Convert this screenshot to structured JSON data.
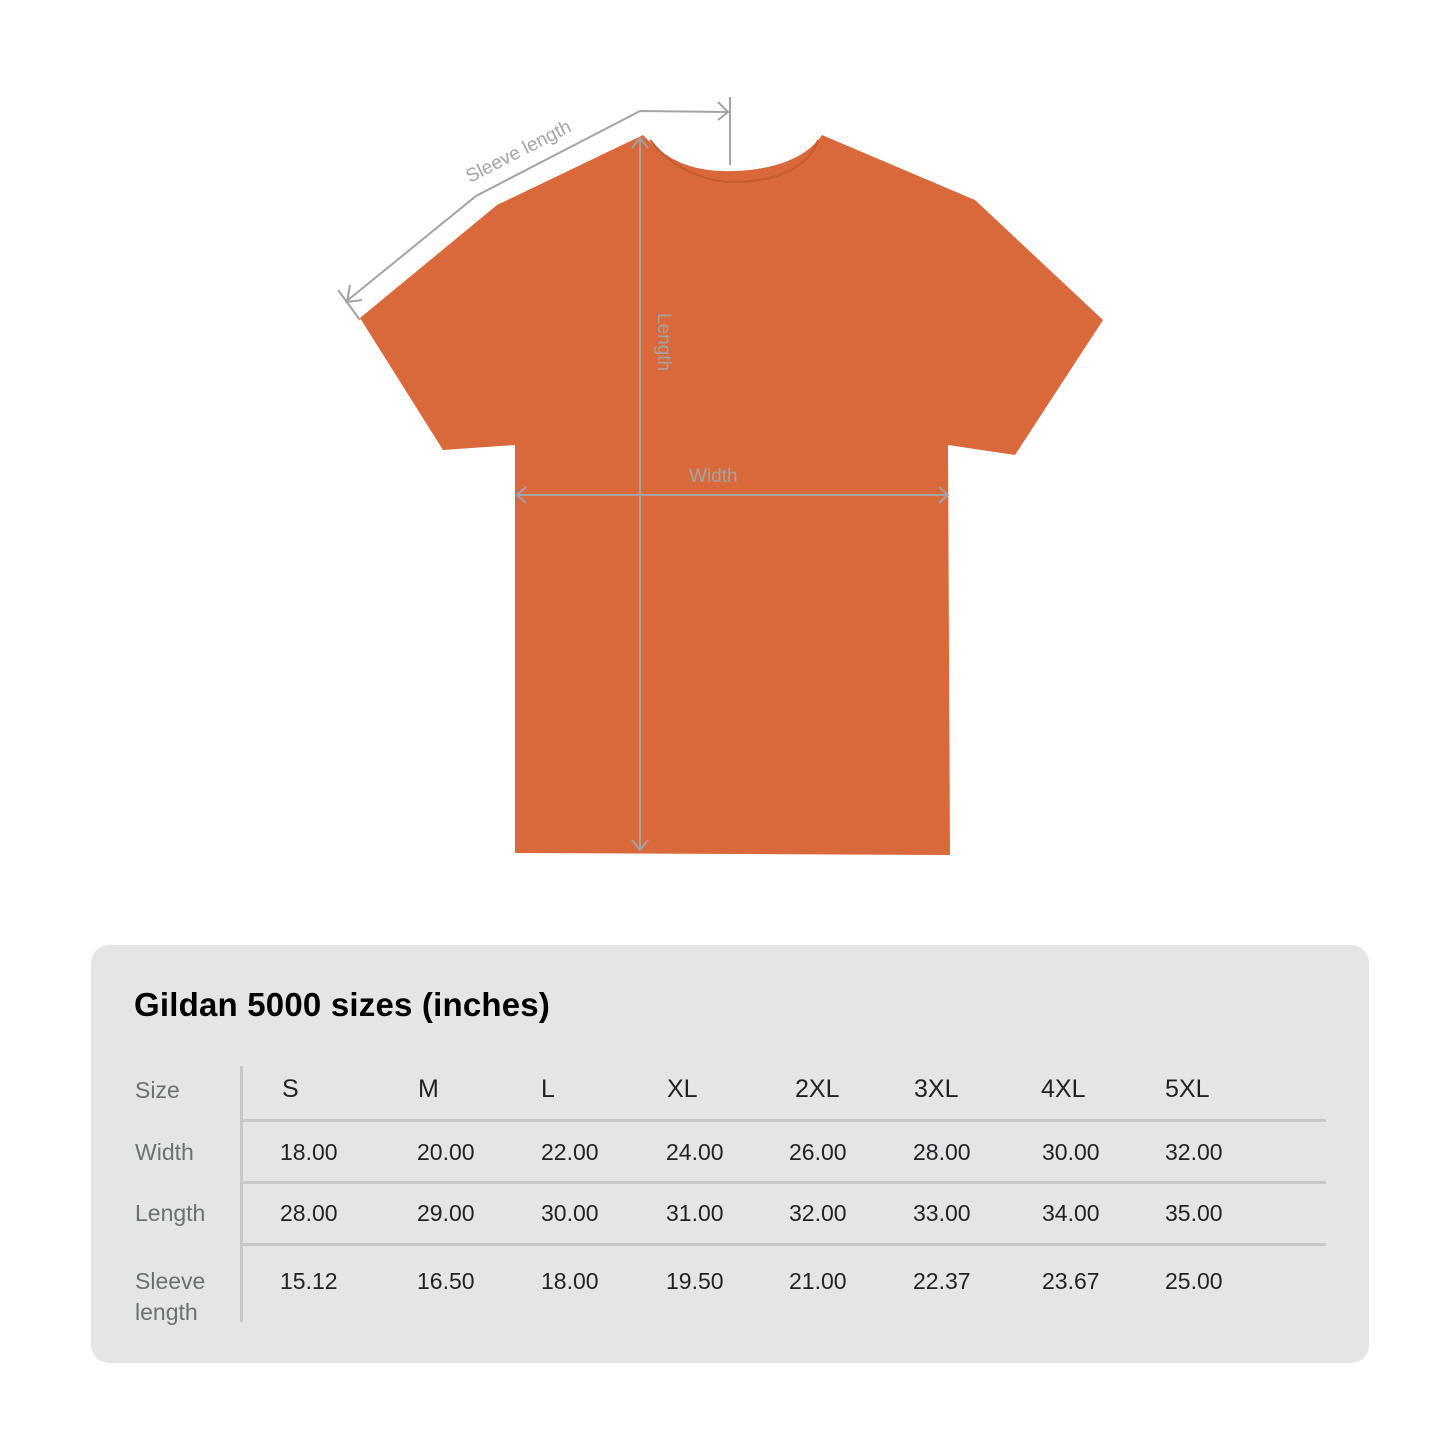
{
  "diagram": {
    "shirt_color": "#d9683a",
    "measure_line_color": "#a3a3a3",
    "labels": {
      "sleeve": "Sleeve length",
      "length": "Length",
      "width": "Width"
    }
  },
  "table": {
    "title": "Gildan 5000 sizes (inches)",
    "background": "#e3e5e7",
    "row_labels": [
      "Size",
      "Width",
      "Length",
      "Sleeve length"
    ],
    "sizes": [
      "S",
      "M",
      "L",
      "XL",
      "2XL",
      "3XL",
      "4XL",
      "5XL"
    ],
    "rows": [
      {
        "label": "Width",
        "values": [
          "18.00",
          "20.00",
          "22.00",
          "24.00",
          "26.00",
          "28.00",
          "30.00",
          "32.00"
        ]
      },
      {
        "label": "Length",
        "values": [
          "28.00",
          "29.00",
          "30.00",
          "31.00",
          "32.00",
          "33.00",
          "34.00",
          "35.00"
        ]
      },
      {
        "label": "Sleeve length",
        "values": [
          "15.12",
          "16.50",
          "18.00",
          "19.50",
          "21.00",
          "22.37",
          "23.67",
          "25.00"
        ]
      }
    ]
  }
}
